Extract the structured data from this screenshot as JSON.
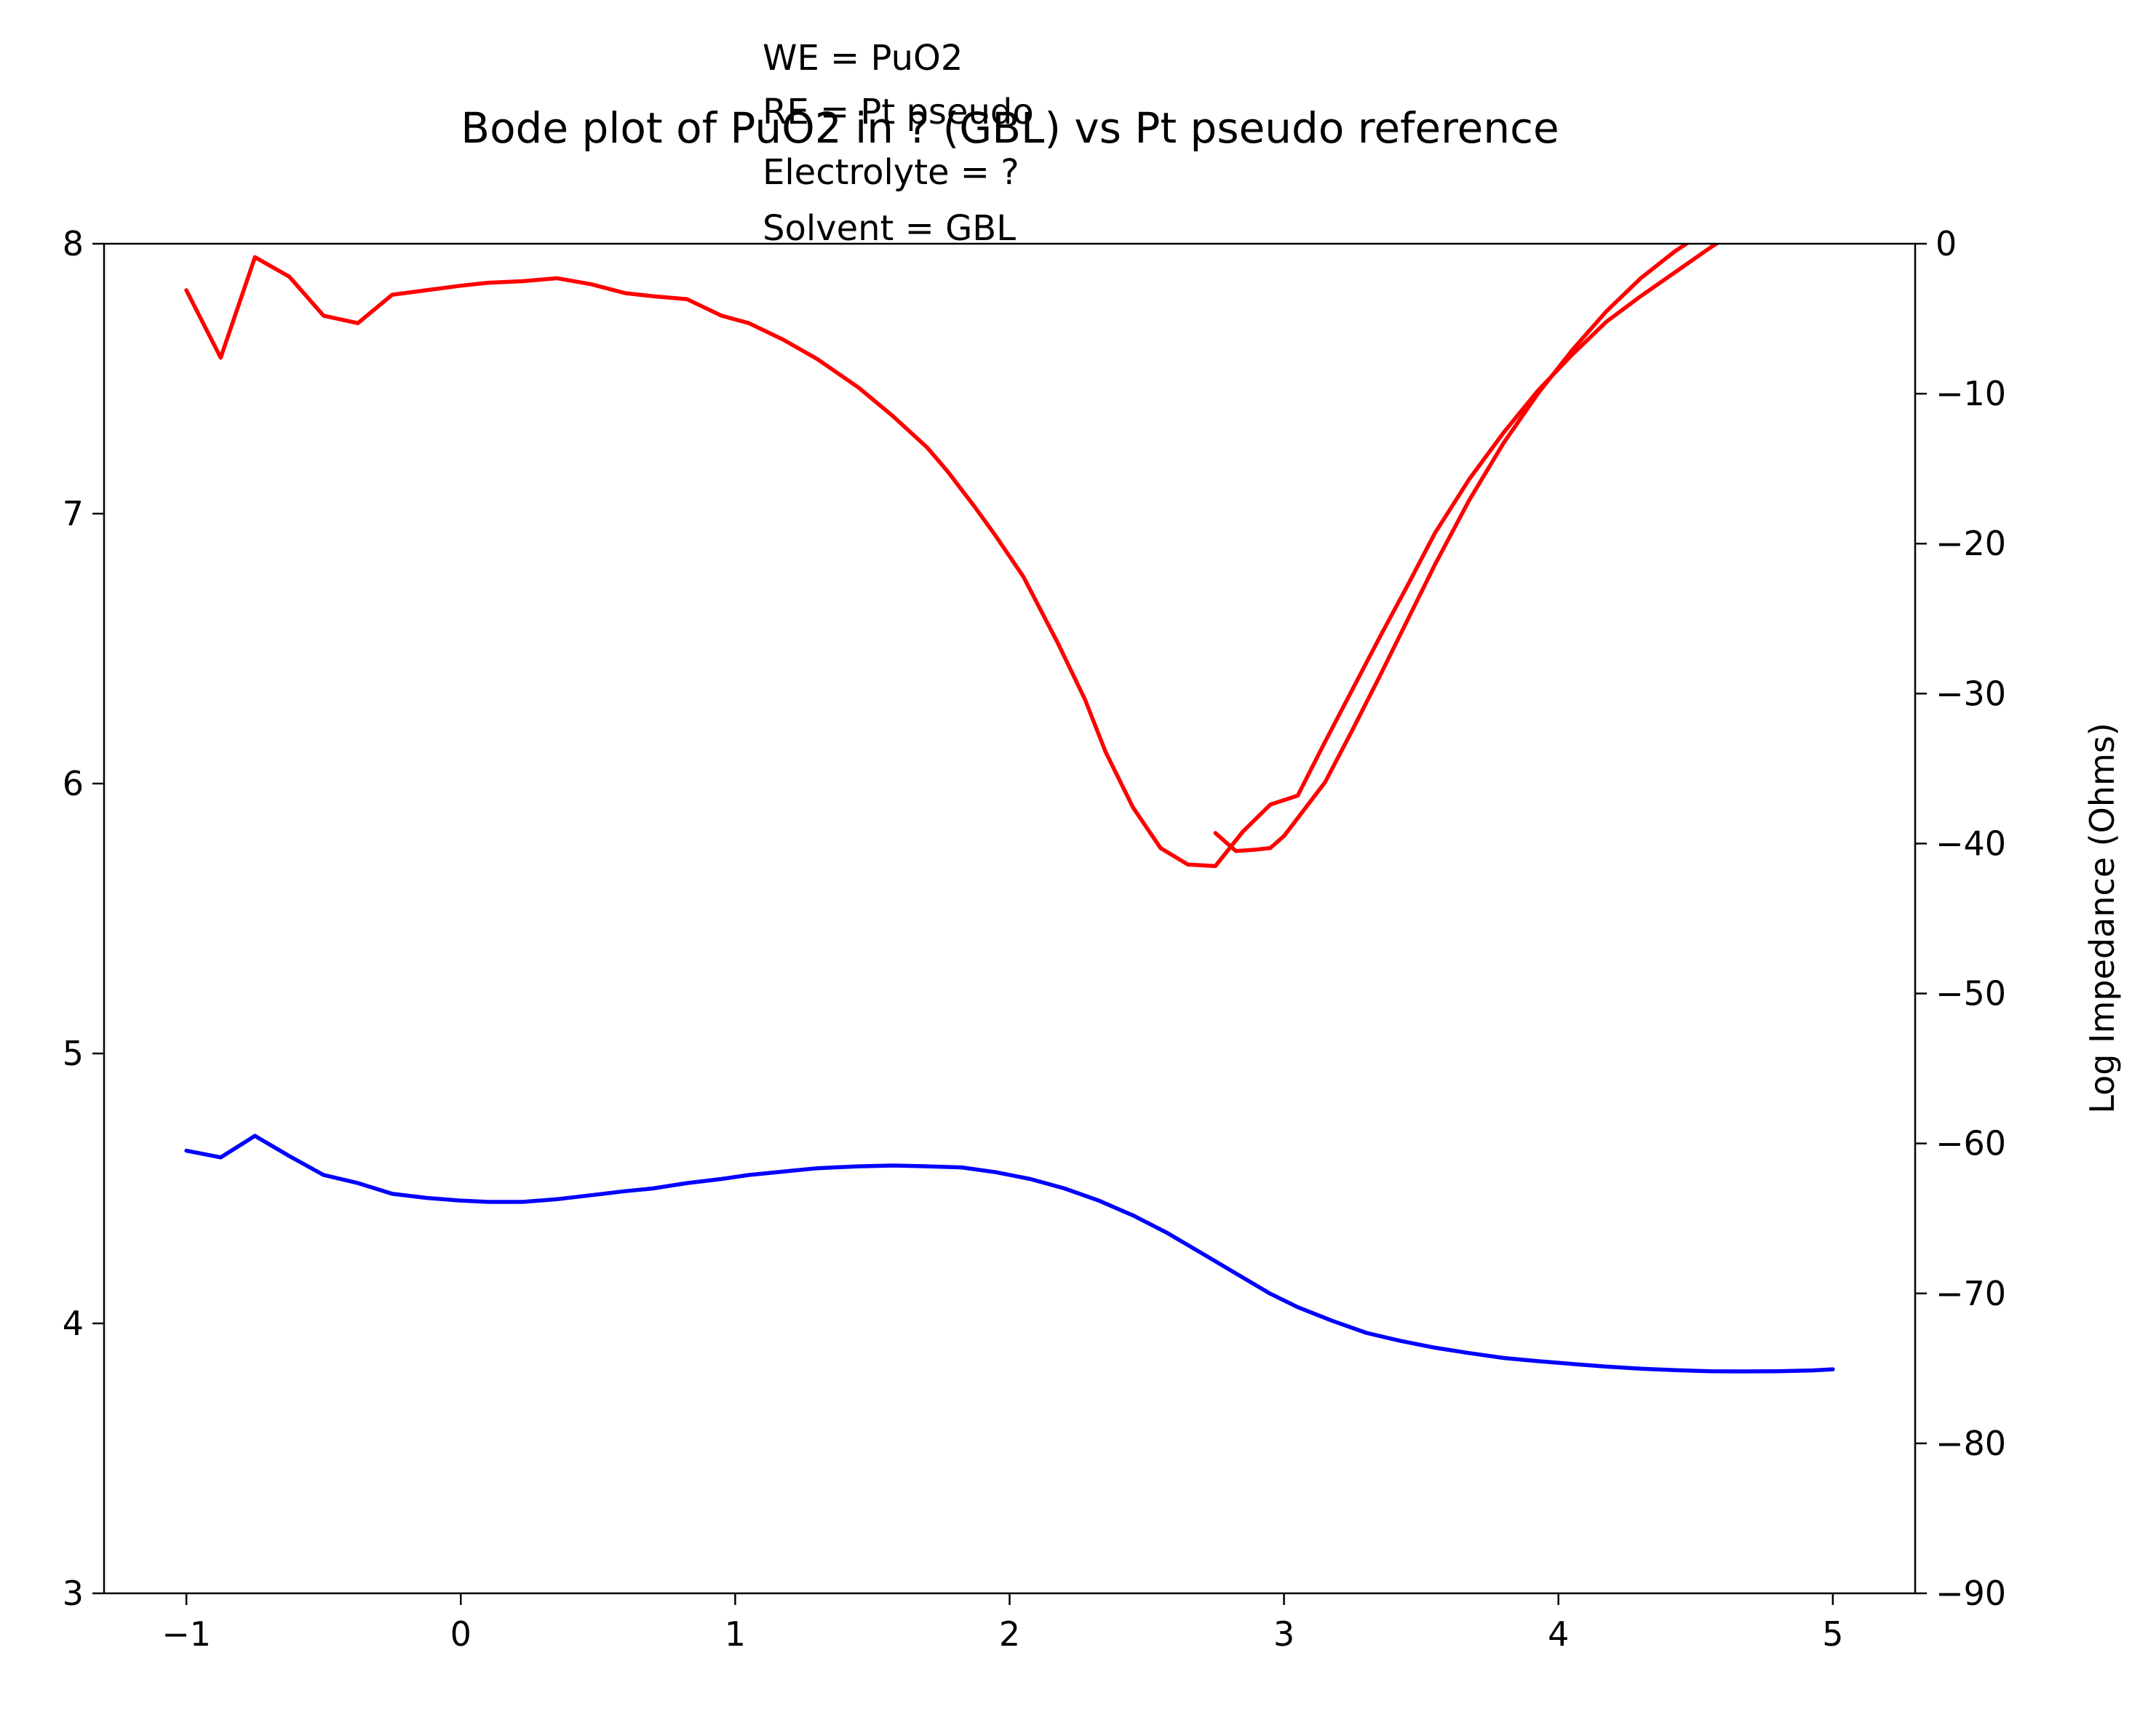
{
  "chart_data": {
    "type": "line",
    "title": "Bode plot of PuO2 in ? (GBL) vs Pt pseudo reference",
    "annotation_lines": [
      "WE = PuO2",
      "RE = Pt pseudo",
      "Electrolyte = ?",
      "Solvent = GBL"
    ],
    "xlabel": "",
    "ylabel_left": "",
    "ylabel_right": "Log Impedance (Ohms)",
    "xlim": [
      -1.3,
      5.3
    ],
    "ylim_left": [
      3,
      8
    ],
    "ylim_right": [
      -90,
      0
    ],
    "x_ticks": [
      -1,
      0,
      1,
      2,
      3,
      4,
      5
    ],
    "x_tick_labels": [
      "−1",
      "0",
      "1",
      "2",
      "3",
      "4",
      "5"
    ],
    "y_left_ticks": [
      3,
      4,
      5,
      6,
      7,
      8
    ],
    "y_left_tick_labels": [
      "3",
      "4",
      "5",
      "6",
      "7",
      "8"
    ],
    "y_right_ticks": [
      0,
      -10,
      -20,
      -30,
      -40,
      -50,
      -60,
      -70,
      -80,
      -90
    ],
    "y_right_tick_labels": [
      "0",
      "−10",
      "−20",
      "−30",
      "−40",
      "−50",
      "−60",
      "−70",
      "−80",
      "−90"
    ],
    "grid": false,
    "legend": "none",
    "series": [
      {
        "axis": "left",
        "color": "#0000ff",
        "x": [
          -1.0,
          -0.875,
          -0.75,
          -0.625,
          -0.5,
          -0.375,
          -0.25,
          -0.125,
          0.0,
          0.1,
          0.225,
          0.35,
          0.475,
          0.6,
          0.7,
          0.825,
          0.95,
          1.05,
          1.2,
          1.3,
          1.45,
          1.575,
          1.7,
          1.825,
          1.95,
          2.075,
          2.2,
          2.325,
          2.45,
          2.575,
          2.7,
          2.825,
          2.95,
          3.05,
          3.175,
          3.3,
          3.425,
          3.55,
          3.675,
          3.8,
          3.925,
          4.05,
          4.175,
          4.3,
          4.425,
          4.55,
          4.675,
          4.8,
          4.925,
          5.0
        ],
        "y": [
          4.64,
          4.615,
          4.695,
          4.62,
          4.55,
          4.52,
          4.48,
          4.465,
          4.455,
          4.45,
          4.45,
          4.46,
          4.475,
          4.49,
          4.5,
          4.52,
          4.535,
          4.55,
          4.565,
          4.575,
          4.582,
          4.585,
          4.582,
          4.578,
          4.56,
          4.535,
          4.5,
          4.455,
          4.4,
          4.335,
          4.26,
          4.185,
          4.11,
          4.06,
          4.01,
          3.965,
          3.935,
          3.91,
          3.89,
          3.872,
          3.86,
          3.85,
          3.84,
          3.832,
          3.827,
          3.823,
          3.822,
          3.823,
          3.826,
          3.83
        ]
      },
      {
        "axis": "right",
        "color": "#ff0000",
        "x": [
          -1.0,
          -0.875,
          -0.75,
          -0.625,
          -0.5,
          -0.375,
          -0.25,
          -0.125,
          0.0,
          0.1,
          0.225,
          0.35,
          0.475,
          0.6,
          0.7,
          0.825,
          0.95,
          1.05,
          1.175,
          1.3,
          1.45,
          1.575,
          1.7,
          1.775,
          1.875,
          1.95,
          2.05,
          2.175,
          2.275,
          2.35,
          2.45,
          2.55,
          2.65,
          2.75,
          2.85,
          2.95,
          3.05,
          3.15,
          3.25,
          3.35,
          3.45,
          3.55,
          3.675,
          3.8,
          3.925,
          4.05,
          4.175,
          4.3,
          4.425,
          4.55,
          4.675,
          4.8
        ],
        "y": [
          -3.1,
          -7.6,
          -0.9,
          -2.2,
          -4.8,
          -5.3,
          -3.4,
          -3.1,
          -2.8,
          -2.6,
          -2.5,
          -2.3,
          -2.7,
          -3.3,
          -3.5,
          -3.7,
          -4.8,
          -5.3,
          -6.4,
          -7.7,
          -9.6,
          -11.5,
          -13.6,
          -15.2,
          -17.6,
          -19.5,
          -22.2,
          -26.6,
          -30.4,
          -33.9,
          -37.6,
          -40.3,
          -41.4,
          -41.5,
          -39.2,
          -37.4,
          -36.8,
          -33.2,
          -29.7,
          -26.2,
          -22.8,
          -19.3,
          -15.7,
          -12.6,
          -9.8,
          -7.4,
          -5.2,
          -3.5,
          -1.9,
          -0.3,
          1.2,
          2.5
        ]
      },
      {
        "axis": "right",
        "color": "#ff0000",
        "x": [
          2.75,
          2.825,
          2.9,
          2.95,
          3.0,
          3.05,
          3.15,
          3.25,
          3.35,
          3.45,
          3.55,
          3.675,
          3.8,
          3.925,
          4.05,
          4.175,
          4.3,
          4.425,
          4.55,
          4.675,
          4.775
        ],
        "y": [
          -39.3,
          -40.5,
          -40.4,
          -40.3,
          -39.5,
          -38.3,
          -35.9,
          -32.4,
          -28.8,
          -25.1,
          -21.4,
          -17.1,
          -13.3,
          -10.0,
          -7.1,
          -4.5,
          -2.3,
          -0.5,
          1.0,
          2.0,
          2.4
        ]
      }
    ]
  }
}
